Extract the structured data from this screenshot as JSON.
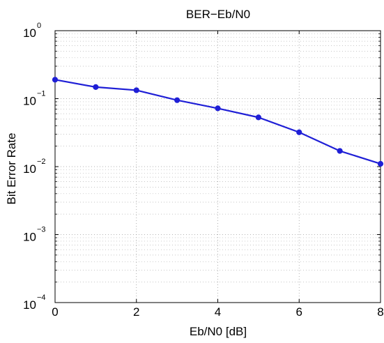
{
  "chart_data": {
    "type": "line",
    "title": "BER−Eb/N0",
    "xlabel": "Eb/N0 [dB]",
    "ylabel": "Bit Error Rate",
    "xlim": [
      0,
      8
    ],
    "ylim": [
      0.0001,
      1
    ],
    "yscale": "log",
    "grid": true,
    "grid_style": "dotted",
    "x_ticks": [
      0,
      2,
      4,
      6,
      8
    ],
    "x_tick_labels": [
      "0",
      "2",
      "4",
      "6",
      "8"
    ],
    "y_ticks": [
      0.0001,
      0.001,
      0.01,
      0.1,
      1
    ],
    "y_tick_labels": [
      {
        "base": "10",
        "exp": "−4"
      },
      {
        "base": "10",
        "exp": "−3"
      },
      {
        "base": "10",
        "exp": "−2"
      },
      {
        "base": "10",
        "exp": "−1"
      },
      {
        "base": "10",
        "exp": "0"
      }
    ],
    "series": [
      {
        "color": "#1f1fd6",
        "marker": "circle",
        "x": [
          0,
          1,
          2,
          3,
          4,
          5,
          6,
          7,
          8
        ],
        "y": [
          0.19,
          0.148,
          0.133,
          0.095,
          0.072,
          0.053,
          0.032,
          0.017,
          0.011
        ]
      }
    ]
  }
}
